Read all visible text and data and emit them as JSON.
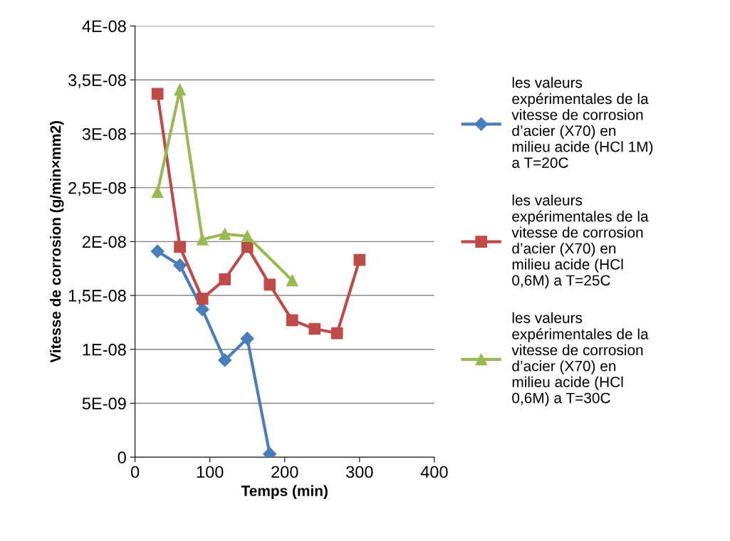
{
  "chart_data": {
    "type": "line",
    "xlabel": "Temps (min)",
    "ylabel": "Vitesse de corrosion (g/min×mm2)",
    "xlim": [
      0,
      400
    ],
    "xticks": [
      0,
      100,
      200,
      300,
      400
    ],
    "ylim": [
      0,
      4e-08
    ],
    "yticks": [
      {
        "value": 0,
        "label": "0"
      },
      {
        "value": 5e-09,
        "label": "5E-09"
      },
      {
        "value": 1e-08,
        "label": "1E-08"
      },
      {
        "value": 1.5e-08,
        "label": "1,5E-08"
      },
      {
        "value": 2e-08,
        "label": "2E-08"
      },
      {
        "value": 2.5e-08,
        "label": "2,5E-08"
      },
      {
        "value": 3e-08,
        "label": "3E-08"
      },
      {
        "value": 3.5e-08,
        "label": "3,5E-08"
      },
      {
        "value": 4e-08,
        "label": "4E-08"
      }
    ],
    "grid": "y",
    "legend": "right",
    "line_style": "solid",
    "series": [
      {
        "name": "les valeurs expérimentales de la vitesse de corrosion d’acier (X70) en milieu acide (HCl 1M) a T=20C",
        "color": "#4a7ebb",
        "marker": "diamond",
        "x": [
          30,
          60,
          90,
          120,
          150,
          180
        ],
        "values": [
          1.91e-08,
          1.78e-08,
          1.37e-08,
          9e-09,
          1.1e-08,
          3e-10
        ]
      },
      {
        "name": "les valeurs expérimentales de la vitesse de corrosion d’acier (X70) en milieu acide (HCl 0,6M) a T=25C",
        "color": "#be4b48",
        "marker": "square",
        "x": [
          30,
          60,
          90,
          120,
          150,
          180,
          210,
          240,
          270,
          300
        ],
        "values": [
          3.37e-08,
          1.95e-08,
          1.47e-08,
          1.65e-08,
          1.95e-08,
          1.6e-08,
          1.27e-08,
          1.19e-08,
          1.15e-08,
          1.83e-08
        ]
      },
      {
        "name": "les valeurs expérimentales de la vitesse de corrosion d’acier (X70) en milieu acide (HCl 0,6M) a T=30C",
        "color": "#98b954",
        "marker": "triangle",
        "x": [
          30,
          60,
          90,
          120,
          150,
          210
        ],
        "values": [
          2.46e-08,
          3.41e-08,
          2.02e-08,
          2.07e-08,
          2.05e-08,
          1.64e-08
        ]
      }
    ]
  }
}
